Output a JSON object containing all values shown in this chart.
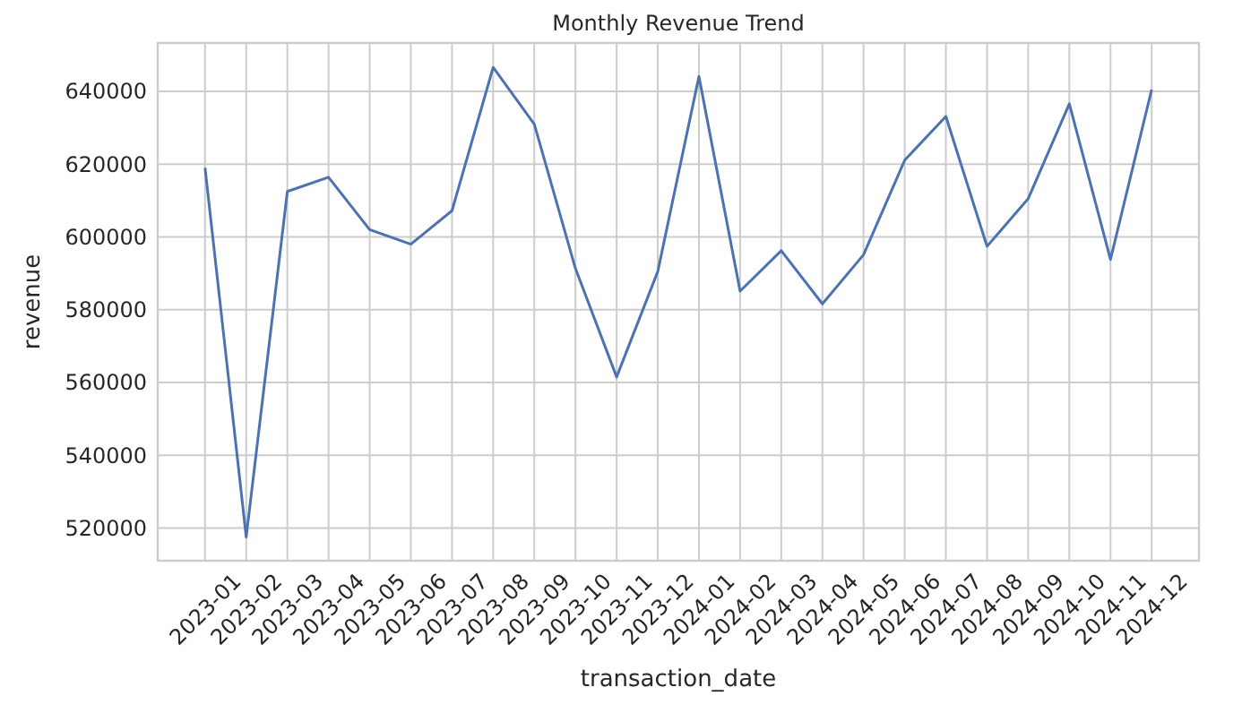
{
  "chart_data": {
    "type": "line",
    "title": "Monthly Revenue Trend",
    "xlabel": "transaction_date",
    "ylabel": "revenue",
    "categories": [
      "2023-01",
      "2023-02",
      "2023-03",
      "2023-04",
      "2023-05",
      "2023-06",
      "2023-07",
      "2023-08",
      "2023-09",
      "2023-10",
      "2023-11",
      "2023-12",
      "2024-01",
      "2024-02",
      "2024-03",
      "2024-04",
      "2024-05",
      "2024-06",
      "2024-07",
      "2024-08",
      "2024-09",
      "2024-10",
      "2024-11",
      "2024-12"
    ],
    "series": [
      {
        "color": "#4c72b0",
        "values": [
          619000,
          517500,
          612500,
          616400,
          602000,
          598000,
          607200,
          646600,
          631000,
          591300,
          561500,
          590500,
          644100,
          585100,
          596200,
          581600,
          595100,
          621100,
          633100,
          597400,
          610500,
          636600,
          593800,
          640500
        ]
      }
    ],
    "ylim": [
      511000,
      653300
    ],
    "yticks": [
      520000,
      540000,
      560000,
      580000,
      600000,
      620000,
      640000
    ],
    "grid": true,
    "marker": "none",
    "line_style": "solid"
  }
}
